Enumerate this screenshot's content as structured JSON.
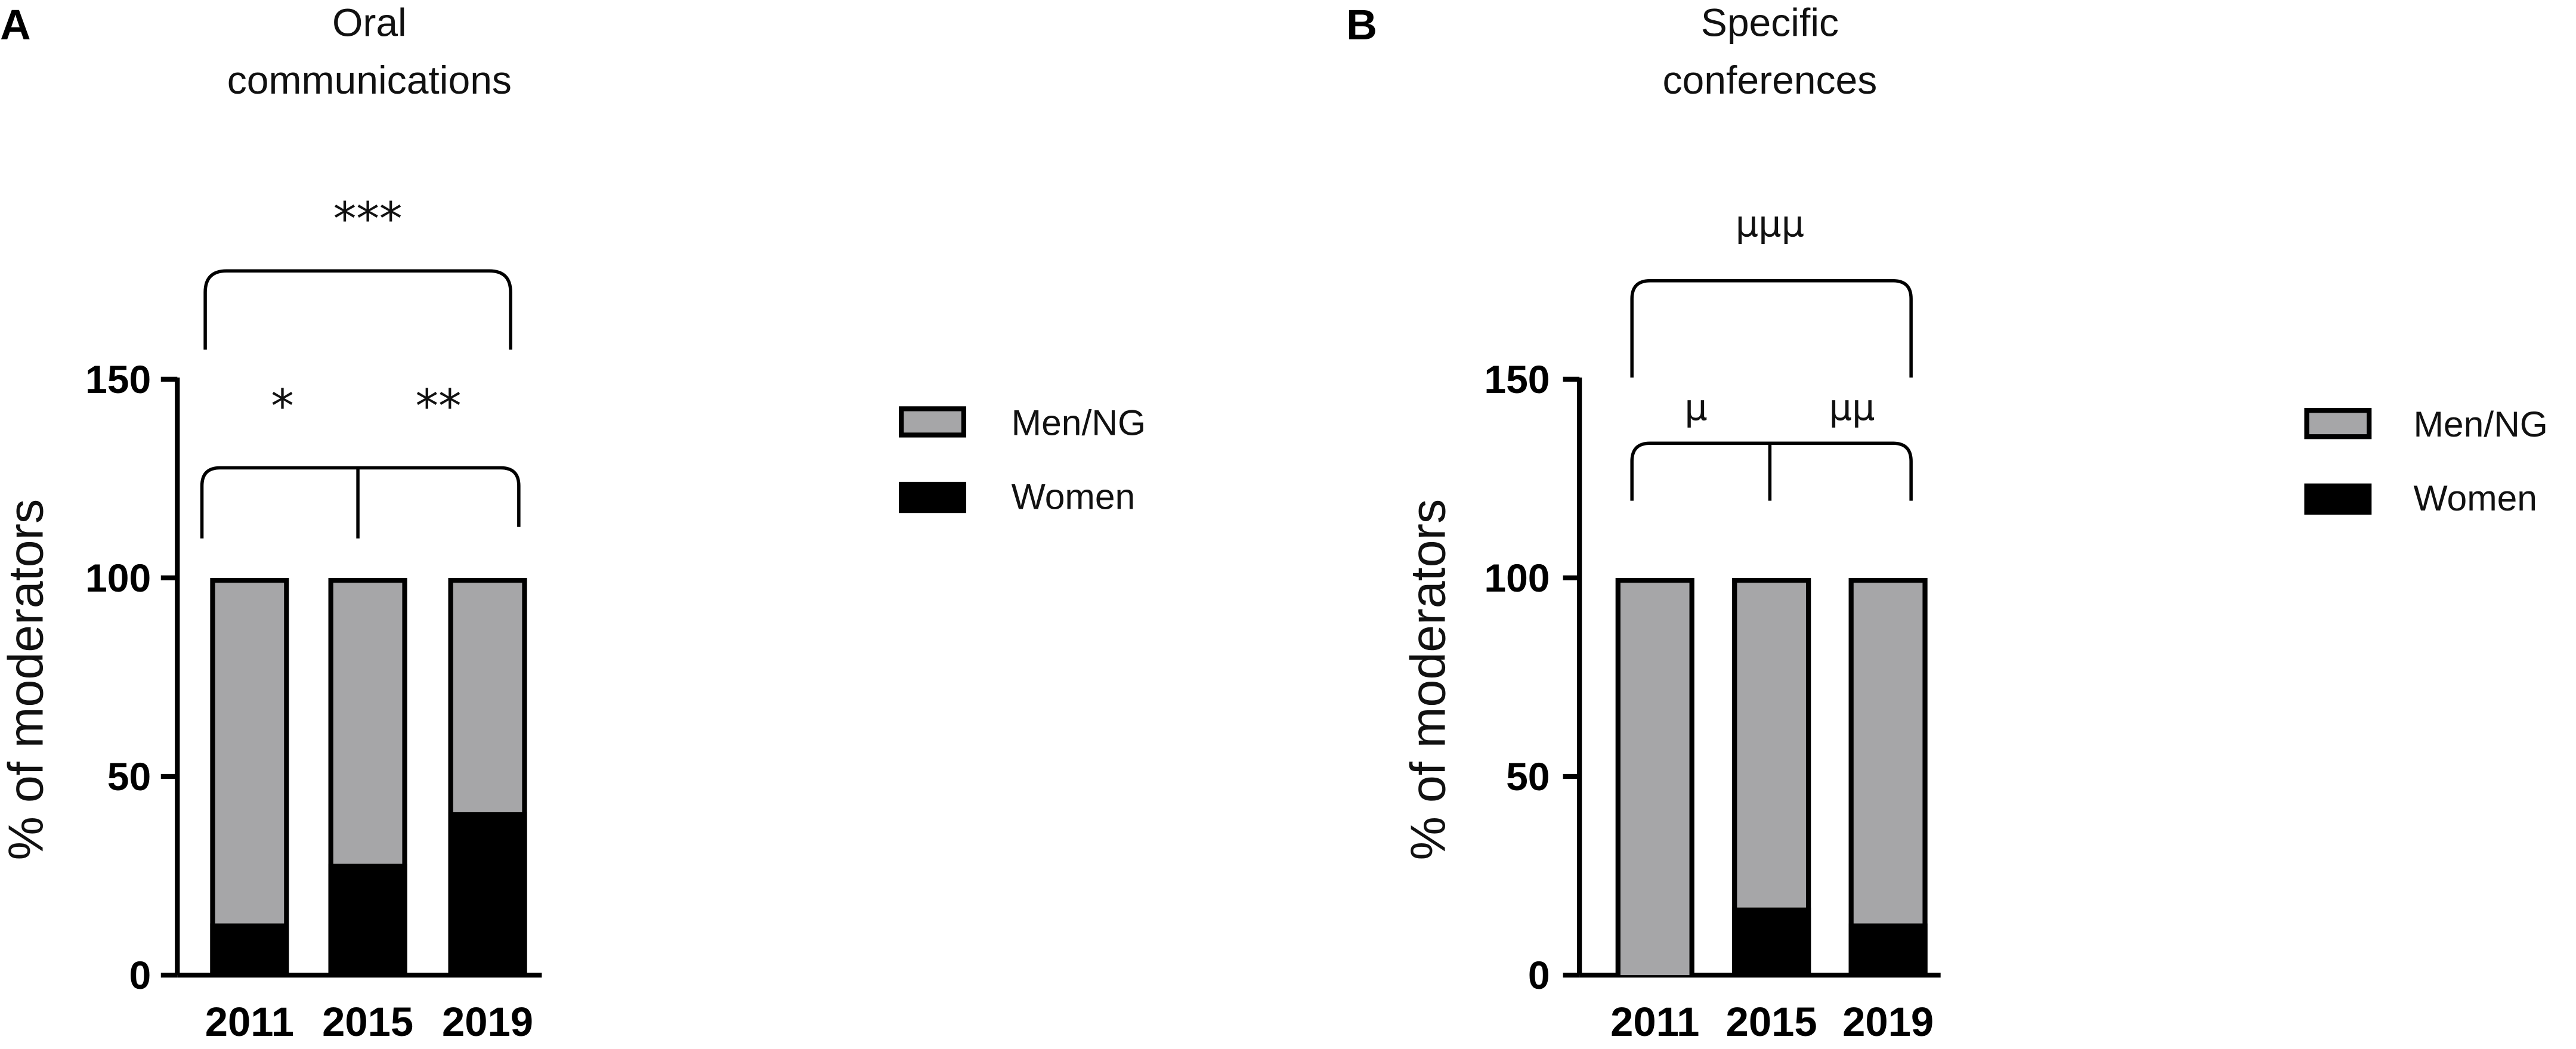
{
  "chart_data": [
    {
      "panel": "A",
      "type": "bar",
      "stacked": true,
      "title": "Oral communications",
      "title_lines": [
        "Oral",
        "communications"
      ],
      "xlabel": "",
      "ylabel": "% of moderators",
      "ylim": [
        0,
        150
      ],
      "yticks": [
        0,
        50,
        100,
        150
      ],
      "categories": [
        "2011",
        "2015",
        "2019"
      ],
      "series": [
        {
          "name": "Women",
          "values": [
            13,
            28,
            41
          ],
          "color": "#000000"
        },
        {
          "name": "Men/NG",
          "values": [
            87,
            72,
            59
          ],
          "color": "#a6a6a8"
        }
      ],
      "legend": {
        "position": "right",
        "items": [
          "Men/NG",
          "Women"
        ]
      },
      "significance": [
        {
          "label": "*",
          "from": "2011",
          "to": "2015"
        },
        {
          "label": "**",
          "from": "2015",
          "to": "2019"
        },
        {
          "label": "***",
          "from": "2011",
          "to": "2019"
        }
      ]
    },
    {
      "panel": "B",
      "type": "bar",
      "stacked": true,
      "title": "Specific conferences",
      "title_lines": [
        "Specific",
        "conferences"
      ],
      "xlabel": "",
      "ylabel": "% of moderators",
      "ylim": [
        0,
        150
      ],
      "yticks": [
        0,
        50,
        100,
        150
      ],
      "categories": [
        "2011",
        "2015",
        "2019"
      ],
      "series": [
        {
          "name": "Women",
          "values": [
            0,
            17,
            13
          ],
          "color": "#000000"
        },
        {
          "name": "Men/NG",
          "values": [
            100,
            83,
            87
          ],
          "color": "#a6a6a8"
        }
      ],
      "legend": {
        "position": "right",
        "items": [
          "Men/NG",
          "Women"
        ]
      },
      "significance": [
        {
          "label": "µ",
          "from": "2011",
          "to": "2015"
        },
        {
          "label": "µµ",
          "from": "2015",
          "to": "2019"
        },
        {
          "label": "µµµ",
          "from": "2011",
          "to": "2019"
        }
      ]
    }
  ]
}
